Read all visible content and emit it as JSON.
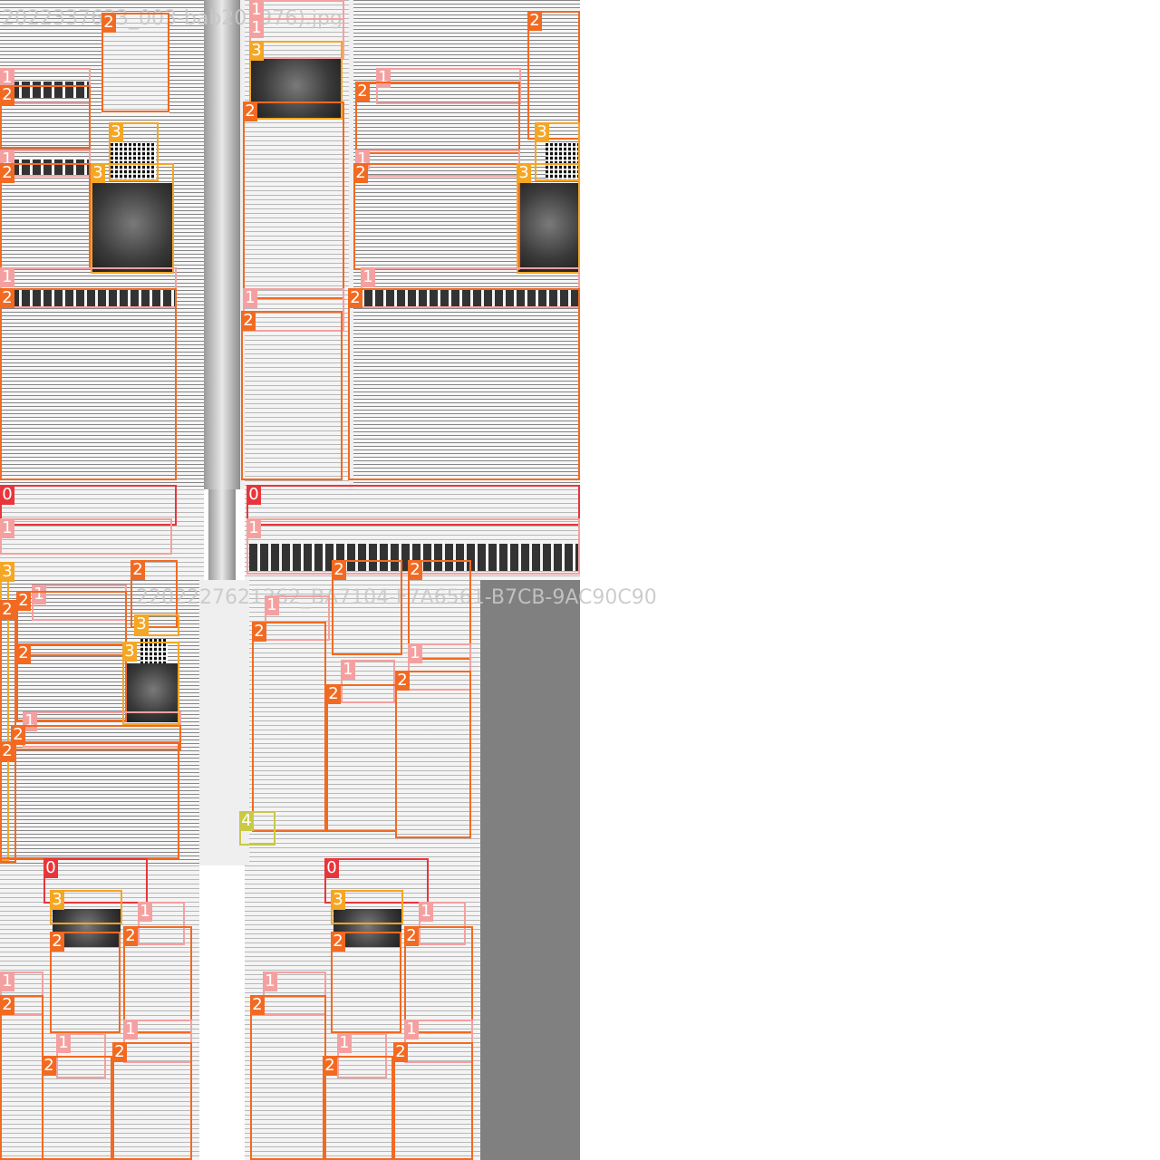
{
  "filenames": {
    "top_left": "2022337633_003-bab201976).jpg",
    "middle": "2202227621262_BA7104-F7A6561-B7CB-9AC90C90"
  },
  "label_colors": {
    "0": "#e8353b",
    "1": "#f5a0a0",
    "2": "#f26a21",
    "3": "#f5a623",
    "4": "#c9c943"
  },
  "tiles": [
    {
      "name": "tile-top-left",
      "boxes": [
        {
          "label": "2",
          "cls": "c2"
        },
        {
          "label": "1",
          "cls": "c1"
        },
        {
          "label": "2",
          "cls": "c2"
        },
        {
          "label": "3",
          "cls": "c3"
        },
        {
          "label": "1",
          "cls": "c1"
        },
        {
          "label": "2",
          "cls": "c2"
        },
        {
          "label": "3",
          "cls": "c3"
        },
        {
          "label": "1",
          "cls": "c1"
        },
        {
          "label": "2",
          "cls": "c2"
        }
      ]
    },
    {
      "name": "tile-top-middle",
      "boxes": [
        {
          "label": "1",
          "cls": "c1"
        },
        {
          "label": "1",
          "cls": "c1"
        },
        {
          "label": "3",
          "cls": "c3"
        },
        {
          "label": "2",
          "cls": "c2"
        },
        {
          "label": "1",
          "cls": "c1"
        },
        {
          "label": "2",
          "cls": "c2"
        }
      ]
    },
    {
      "name": "tile-top-right",
      "boxes": [
        {
          "label": "2",
          "cls": "c2"
        },
        {
          "label": "1",
          "cls": "c1"
        },
        {
          "label": "2",
          "cls": "c2"
        },
        {
          "label": "3",
          "cls": "c3"
        },
        {
          "label": "1",
          "cls": "c1"
        },
        {
          "label": "2",
          "cls": "c2"
        },
        {
          "label": "3",
          "cls": "c3"
        },
        {
          "label": "1",
          "cls": "c1"
        },
        {
          "label": "2",
          "cls": "c2"
        }
      ]
    },
    {
      "name": "tile-strip-left",
      "boxes": [
        {
          "label": "0",
          "cls": "c0"
        },
        {
          "label": "1",
          "cls": "c1"
        }
      ]
    },
    {
      "name": "tile-strip-right",
      "boxes": [
        {
          "label": "0",
          "cls": "c0"
        },
        {
          "label": "1",
          "cls": "c1"
        }
      ]
    },
    {
      "name": "tile-mid-left",
      "boxes": [
        {
          "label": "3",
          "cls": "c3"
        },
        {
          "label": "2",
          "cls": "c2"
        },
        {
          "label": "2",
          "cls": "c2"
        },
        {
          "label": "1",
          "cls": "c1"
        },
        {
          "label": "2",
          "cls": "c2"
        },
        {
          "label": "3",
          "cls": "c3"
        },
        {
          "label": "2",
          "cls": "c2"
        },
        {
          "label": "3",
          "cls": "c3"
        },
        {
          "label": "1",
          "cls": "c1"
        },
        {
          "label": "2",
          "cls": "c2"
        },
        {
          "label": "2",
          "cls": "c2"
        }
      ]
    },
    {
      "name": "tile-mid-right",
      "boxes": [
        {
          "label": "2",
          "cls": "c2"
        },
        {
          "label": "2",
          "cls": "c2"
        },
        {
          "label": "1",
          "cls": "c1"
        },
        {
          "label": "2",
          "cls": "c2"
        },
        {
          "label": "1",
          "cls": "c1"
        },
        {
          "label": "2",
          "cls": "c2"
        },
        {
          "label": "1",
          "cls": "c1"
        },
        {
          "label": "2",
          "cls": "c2"
        },
        {
          "label": "4",
          "cls": "c4"
        }
      ]
    },
    {
      "name": "tile-bottom-left",
      "boxes": [
        {
          "label": "0",
          "cls": "c0"
        },
        {
          "label": "3",
          "cls": "c3"
        },
        {
          "label": "1",
          "cls": "c1"
        },
        {
          "label": "2",
          "cls": "c2"
        },
        {
          "label": "2",
          "cls": "c2"
        },
        {
          "label": "1",
          "cls": "c1"
        },
        {
          "label": "2",
          "cls": "c2"
        },
        {
          "label": "1",
          "cls": "c1"
        },
        {
          "label": "2",
          "cls": "c2"
        },
        {
          "label": "1",
          "cls": "c1"
        },
        {
          "label": "2",
          "cls": "c2"
        }
      ]
    },
    {
      "name": "tile-bottom-right",
      "boxes": [
        {
          "label": "0",
          "cls": "c0"
        },
        {
          "label": "3",
          "cls": "c3"
        },
        {
          "label": "1",
          "cls": "c1"
        },
        {
          "label": "2",
          "cls": "c2"
        },
        {
          "label": "2",
          "cls": "c2"
        },
        {
          "label": "1",
          "cls": "c1"
        },
        {
          "label": "2",
          "cls": "c2"
        },
        {
          "label": "1",
          "cls": "c1"
        },
        {
          "label": "2",
          "cls": "c2"
        },
        {
          "label": "1",
          "cls": "c1"
        },
        {
          "label": "2",
          "cls": "c2"
        }
      ]
    }
  ]
}
